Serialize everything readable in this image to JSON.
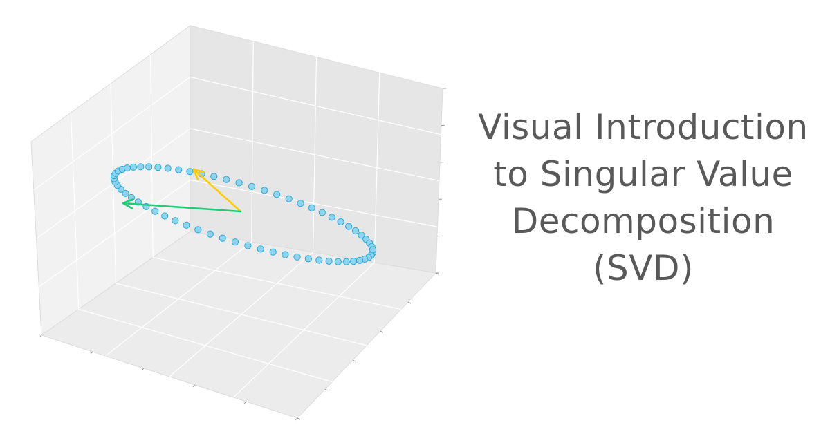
{
  "title": {
    "lines": [
      "Visual Introduction",
      "to Singular Value",
      "Decomposition",
      "(SVD)"
    ]
  },
  "colors": {
    "pane_left": "#f2f2f2",
    "pane_back": "#e6e6e6",
    "pane_floor": "#ececec",
    "grid": "#ffffff",
    "ellipse_fill": "#8fd4ee",
    "ellipse_edge": "#2aa9d6",
    "vector_1": "#ffcc00",
    "vector_2": "#22cc77",
    "title_text": "#595959"
  },
  "chart_data": {
    "type": "scatter",
    "projection": "3d",
    "grid": true,
    "tick_labels_visible": false,
    "series": [
      {
        "kind": "ellipse_points",
        "point_count": 64
      }
    ],
    "vectors": [
      {
        "color_key": "vector_1"
      },
      {
        "color_key": "vector_2"
      }
    ]
  }
}
